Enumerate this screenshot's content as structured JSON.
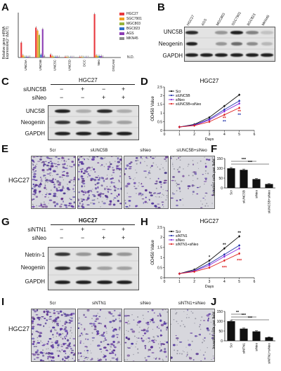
{
  "panels": {
    "A": "A",
    "B": "B",
    "C": "C",
    "D": "D",
    "E": "E",
    "F": "F",
    "G": "G",
    "H": "H",
    "I": "I",
    "J": "J"
  },
  "panelA": {
    "ylabel_line1": "Relative gene mRNA",
    "ylabel_line2": "Expression(2⁻ΔΔCT)",
    "nd": "N.D.",
    "legend": [
      "HGC27",
      "SGC7901",
      "MGC803",
      "BGC823",
      "AGS",
      "MKN45"
    ],
    "legend_colors": [
      "#e8383d",
      "#f0a020",
      "#96b43c",
      "#2c6ec8",
      "#8c3cb4",
      "#8c8c8c"
    ]
  },
  "panelB": {
    "cell_lines": [
      "HGC27",
      "AGS",
      "MGC803",
      "SGC7901",
      "BGC823",
      "MKN45"
    ],
    "rows": [
      "UNC5B",
      "Neogenin",
      "GAPDH"
    ]
  },
  "panelC": {
    "cell_line": "HGC27",
    "treatments": [
      {
        "name": "siUNC5B",
        "signs": [
          "−",
          "+",
          "−",
          "+"
        ]
      },
      {
        "name": "siNeo",
        "signs": [
          "−",
          "−",
          "+",
          "+"
        ]
      }
    ],
    "rows": [
      "UNC5B",
      "Neogenin",
      "GAPDH"
    ]
  },
  "panelE": {
    "cell_line": "HGC27",
    "conditions": [
      "Scr",
      "siUNC5B",
      "siNeo",
      "siUNC5B+siNeo"
    ]
  },
  "panelG": {
    "cell_line": "HGC27",
    "treatments": [
      {
        "name": "siNTN1",
        "signs": [
          "−",
          "+",
          "−",
          "+"
        ]
      },
      {
        "name": "siNeo",
        "signs": [
          "−",
          "−",
          "+",
          "+"
        ]
      }
    ],
    "rows": [
      "Netrin-1",
      "Neogenin",
      "GAPDH"
    ]
  },
  "panelI": {
    "cell_line": "HGC27",
    "conditions": [
      "Scr",
      "siNTN1",
      "siNeo",
      "siNTN1+siNeo"
    ]
  },
  "chart_data": [
    {
      "id": "A",
      "type": "bar",
      "categories": [
        "UNC5A",
        "UNC5B",
        "UNC5C",
        "UNC5D",
        "DCC",
        "Neo",
        "DSCAM"
      ],
      "ylim": [
        0,
        60
      ],
      "ylabel": "Relative gene mRNA Expression(2⁻ΔΔCT)",
      "series": [
        {
          "name": "HGC27",
          "values": [
            20,
            40,
            4,
            1,
            1,
            58,
            0
          ]
        },
        {
          "name": "SGC7901",
          "values": [
            3,
            36,
            2,
            1,
            1,
            3,
            0
          ]
        },
        {
          "name": "MGC803",
          "values": [
            1,
            30,
            1,
            0.5,
            0.5,
            2,
            0
          ]
        },
        {
          "name": "BGC823",
          "values": [
            1,
            4,
            1,
            0.5,
            0.5,
            2,
            0
          ]
        },
        {
          "name": "AGS",
          "values": [
            1,
            38,
            1,
            0.5,
            0.5,
            2,
            0
          ]
        },
        {
          "name": "MKN45",
          "values": [
            1,
            2,
            1,
            0.5,
            0.5,
            1,
            0
          ]
        }
      ],
      "legend_position": "top-right"
    },
    {
      "id": "D",
      "type": "line",
      "title": "HGC27",
      "xlabel": "Days",
      "ylabel": "OD450 Value",
      "x": [
        1,
        2,
        3,
        4,
        5
      ],
      "xlim": [
        0,
        6
      ],
      "ylim": [
        0,
        2.5
      ],
      "yticks": [
        0,
        0.5,
        1,
        1.5,
        2,
        2.5
      ],
      "series": [
        {
          "name": "Scr",
          "color": "#111111",
          "values": [
            0.2,
            0.35,
            0.75,
            1.4,
            2.05
          ]
        },
        {
          "name": "siUNC5B",
          "color": "#2233aa",
          "values": [
            0.2,
            0.32,
            0.65,
            1.2,
            1.7
          ]
        },
        {
          "name": "siNeo",
          "color": "#8a2be2",
          "values": [
            0.2,
            0.3,
            0.6,
            1.1,
            1.55
          ]
        },
        {
          "name": "siUNC5B+siNeo",
          "color": "#dd2222",
          "values": [
            0.2,
            0.28,
            0.5,
            0.9,
            1.3
          ]
        }
      ],
      "annotations": [
        {
          "x": 4,
          "text": "**",
          "color": "#dd2222"
        },
        {
          "x": 5,
          "text": "**",
          "color": "#dd2222"
        },
        {
          "x": 4,
          "text": "**",
          "color": "#2233aa"
        },
        {
          "x": 5,
          "text": "**",
          "color": "#2233aa"
        }
      ],
      "legend_position": "top-left"
    },
    {
      "id": "F",
      "type": "bar",
      "categories": [
        "Scr",
        "siUNC5B",
        "siNeo",
        "siUNC5B+siNeo"
      ],
      "values": [
        100,
        92,
        45,
        20
      ],
      "errors": [
        4,
        4,
        3,
        2
      ],
      "ylim": [
        0,
        150
      ],
      "yticks": [
        0,
        50,
        100,
        150
      ],
      "ylabel": "Invaded cells per field",
      "significance": [
        {
          "from": 0,
          "to": 2,
          "text": "***"
        },
        {
          "from": 0,
          "to": 3,
          "text": "***"
        }
      ]
    },
    {
      "id": "H",
      "type": "line",
      "title": "HGC27",
      "xlabel": "Days",
      "ylabel": "OD450 Value",
      "x": [
        1,
        2,
        3,
        4,
        5
      ],
      "xlim": [
        0,
        6
      ],
      "ylim": [
        0,
        2.5
      ],
      "yticks": [
        0,
        0.5,
        1,
        1.5,
        2,
        2.5
      ],
      "series": [
        {
          "name": "Scr",
          "color": "#111111",
          "values": [
            0.2,
            0.4,
            0.85,
            1.45,
            2.05
          ]
        },
        {
          "name": "siNTN1",
          "color": "#2233aa",
          "values": [
            0.2,
            0.35,
            0.7,
            1.15,
            1.6
          ]
        },
        {
          "name": "siNeo",
          "color": "#8a2be2",
          "values": [
            0.2,
            0.33,
            0.62,
            1.05,
            1.45
          ]
        },
        {
          "name": "siNTN1+siNeo",
          "color": "#dd2222",
          "values": [
            0.2,
            0.3,
            0.5,
            0.85,
            1.2
          ]
        }
      ],
      "annotations": [
        {
          "x": 3,
          "text": "*",
          "color": "#111111"
        },
        {
          "x": 4,
          "text": "**",
          "color": "#111111"
        },
        {
          "x": 5,
          "text": "**",
          "color": "#111111"
        },
        {
          "x": 4,
          "text": "***",
          "color": "#dd2222"
        },
        {
          "x": 5,
          "text": "***",
          "color": "#dd2222"
        }
      ],
      "legend_position": "top-left"
    },
    {
      "id": "J",
      "type": "bar",
      "categories": [
        "Scr",
        "siNTN1",
        "siNeo",
        "siNTN1+siNeo"
      ],
      "values": [
        100,
        62,
        48,
        18
      ],
      "errors": [
        4,
        3,
        3,
        2
      ],
      "ylim": [
        0,
        150
      ],
      "yticks": [
        0,
        50,
        100,
        150
      ],
      "ylabel": "Invaded cells per field",
      "significance": [
        {
          "from": 0,
          "to": 1,
          "text": "**"
        },
        {
          "from": 0,
          "to": 2,
          "text": "***"
        },
        {
          "from": 0,
          "to": 3,
          "text": "***"
        }
      ]
    }
  ]
}
